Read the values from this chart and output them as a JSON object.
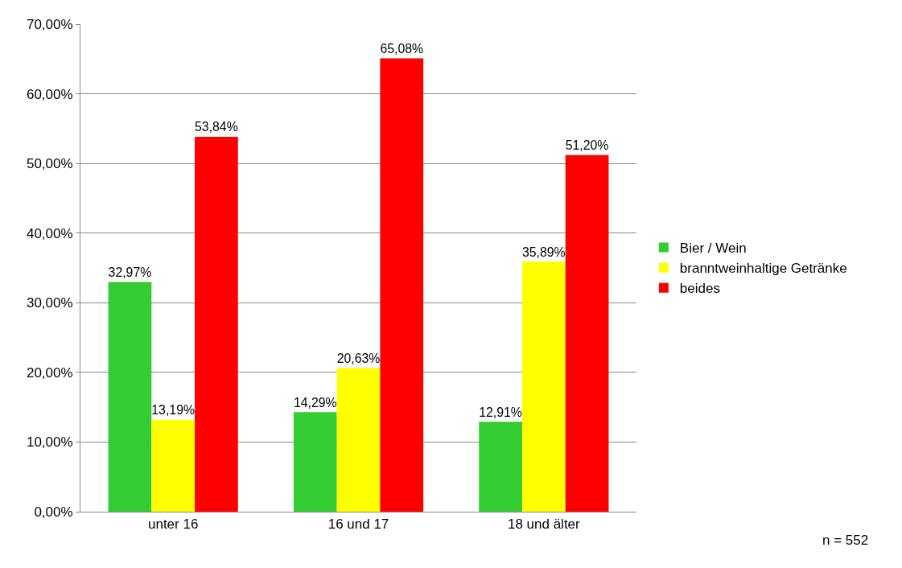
{
  "chart_data": {
    "type": "bar",
    "categories": [
      "unter 16",
      "16 und 17",
      "18 und älter"
    ],
    "series": [
      {
        "name": "Bier / Wein",
        "color": "#33cc33",
        "values": [
          32.97,
          14.29,
          12.91
        ],
        "value_labels": [
          "32,97%",
          "14,29%",
          "12,91%"
        ]
      },
      {
        "name": "branntweinhaltige Getränke",
        "color": "#ffff00",
        "values": [
          13.19,
          20.63,
          35.89
        ],
        "value_labels": [
          "13,19%",
          "20,63%",
          "35,89%"
        ]
      },
      {
        "name": "beides",
        "color": "#ff0000",
        "values": [
          53.84,
          65.08,
          51.2
        ],
        "value_labels": [
          "53,84%",
          "65,08%",
          "51,20%"
        ]
      }
    ],
    "ylim": [
      0,
      70
    ],
    "yticks": [
      {
        "value": 0,
        "label": "0,00%"
      },
      {
        "value": 10,
        "label": "10,00%"
      },
      {
        "value": 20,
        "label": "20,00%"
      },
      {
        "value": 30,
        "label": "30,00%"
      },
      {
        "value": 40,
        "label": "40,00%"
      },
      {
        "value": 50,
        "label": "50,00%"
      },
      {
        "value": 60,
        "label": "60,00%"
      },
      {
        "value": 70,
        "label": "70,00%"
      }
    ],
    "grid": "y",
    "legend": "right",
    "annotations": [
      "n = 552"
    ]
  }
}
